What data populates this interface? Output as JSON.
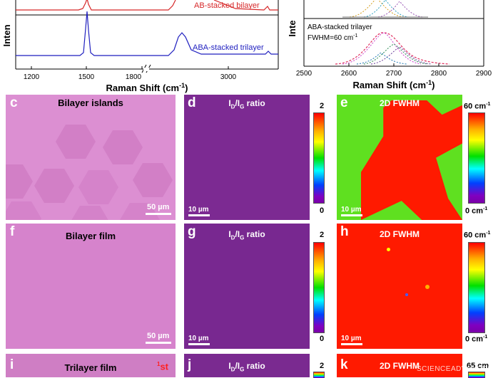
{
  "panel_a": {
    "ylabel": "Inten",
    "curve_labels": [
      "AB-stacked bilayer",
      "ABA-stacked trilayer"
    ],
    "xticks": [
      "1200",
      "1500",
      "1800",
      "3000"
    ],
    "xlabel_main": "Raman Shift (cm",
    "xlabel_sup": "-1",
    "xlabel_end": ")",
    "colors": {
      "bilayer": "#d62728",
      "trilayer": "#1f1fbf"
    }
  },
  "panel_b": {
    "ylabel": "Inte",
    "annotation_line1": "ABA-stacked trilayer",
    "annotation_line2_main": "FWHM=60 cm",
    "annotation_line2_sup": "-1",
    "xticks": [
      "2500",
      "2600",
      "2700",
      "2800",
      "2900"
    ],
    "xlabel_main": "Raman Shift (cm",
    "xlabel_sup": "-1",
    "xlabel_end": ")"
  },
  "rows": [
    {
      "optical": {
        "letter": "c",
        "title": "Bilayer islands",
        "scalebar": "50 µm"
      },
      "ratio": {
        "letter": "d",
        "title_I": "I",
        "title_D": "D",
        "title_mid": "/I",
        "title_G": "G",
        "title_end": " ratio",
        "scalebar": "10 µm",
        "cbar_max": "2",
        "cbar_min": "0"
      },
      "fwhm": {
        "letter": "e",
        "title": "2D FWHM",
        "scalebar": "10 µm",
        "cbar_max_main": "60 cm",
        "cbar_max_sup": "-1",
        "cbar_min_main": "0 cm",
        "cbar_min_sup": "-1"
      }
    },
    {
      "optical": {
        "letter": "f",
        "title": "Bilayer film",
        "scalebar": "50 µm"
      },
      "ratio": {
        "letter": "g",
        "title_I": "I",
        "title_D": "D",
        "title_mid": "/I",
        "title_G": "G",
        "title_end": " ratio",
        "scalebar": "10 µm",
        "cbar_max": "2",
        "cbar_min": "0"
      },
      "fwhm": {
        "letter": "h",
        "title": "2D FWHM",
        "scalebar": "10 µm",
        "cbar_max_main": "60 cm",
        "cbar_max_sup": "-1",
        "cbar_min_main": "0 cm",
        "cbar_min_sup": "-1"
      }
    },
    {
      "optical": {
        "letter": "i",
        "title": "Trilayer film",
        "marker_sup": "1",
        "marker_main": "st"
      },
      "ratio": {
        "letter": "j",
        "title_I": "I",
        "title_D": "D",
        "title_mid": "/I",
        "title_G": "G",
        "title_end": " ratio",
        "cbar_max": "2"
      },
      "fwhm": {
        "letter": "k",
        "title": "2D FWHM",
        "cbar_max_main": "65 cm"
      }
    }
  ],
  "watermark": "SCIENCEADVANCES"
}
